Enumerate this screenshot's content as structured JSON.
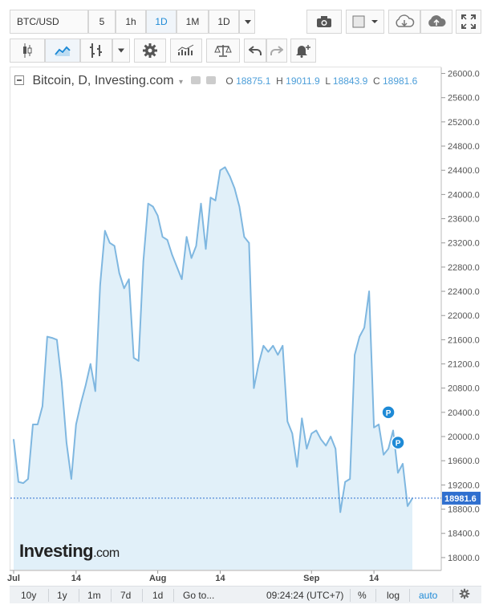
{
  "toolbar": {
    "symbol": "BTC/USD",
    "intervals": [
      "5",
      "1h",
      "1D",
      "1M"
    ],
    "active_interval": "1D",
    "interval_dropdown": "1D"
  },
  "legend": {
    "title": "Bitcoin, D, Investing.com",
    "o_label": "O",
    "o_value": "18875.1",
    "h_label": "H",
    "h_value": "19011.9",
    "l_label": "L",
    "l_value": "18843.9",
    "c_label": "C",
    "c_value": "18981.6"
  },
  "watermark": "Investing",
  "watermark_suffix": ".com",
  "bottom_bar": {
    "ranges": [
      "10y",
      "1y",
      "1m",
      "7d",
      "1d"
    ],
    "goto": "Go to...",
    "time": "09:24:24 (UTC+7)",
    "percent": "%",
    "log": "log",
    "auto": "auto"
  },
  "colors": {
    "line": "#7fb7e0",
    "area": "#e1f0f9",
    "price_label_bg": "#2f6fcf",
    "marker": "#1e8ad6"
  },
  "chart_data": {
    "type": "area",
    "title": "Bitcoin, D, Investing.com",
    "xlabel": "",
    "ylabel": "",
    "ylim": [
      17800,
      26100
    ],
    "y_ticks": [
      "18000.0",
      "18400.0",
      "18800.0",
      "19200.0",
      "19600.0",
      "20000.0",
      "20400.0",
      "20800.0",
      "21200.0",
      "21600.0",
      "22000.0",
      "22400.0",
      "22800.0",
      "23200.0",
      "23600.0",
      "24000.0",
      "24400.0",
      "24800.0",
      "25200.0",
      "25600.0",
      "26000.0"
    ],
    "x_ticks": [
      {
        "label": "Jul",
        "i": 0
      },
      {
        "label": "14",
        "i": 13
      },
      {
        "label": "Aug",
        "i": 30
      },
      {
        "label": "14",
        "i": 43
      },
      {
        "label": "Sep",
        "i": 62
      },
      {
        "label": "14",
        "i": 75
      }
    ],
    "last_price": "18981.6",
    "last_value": 18981.6,
    "markers": [
      {
        "i": 78,
        "value": 20400,
        "label": "P"
      },
      {
        "i": 80,
        "value": 19900,
        "label": "P"
      }
    ],
    "values": [
      19950,
      19250,
      19230,
      19300,
      20200,
      20200,
      20500,
      21650,
      21630,
      21600,
      20900,
      19900,
      19300,
      20200,
      20550,
      20850,
      21200,
      20750,
      22500,
      23400,
      23200,
      23150,
      22700,
      22450,
      22600,
      21300,
      21250,
      22900,
      23850,
      23800,
      23650,
      23300,
      23250,
      23000,
      22800,
      22600,
      23300,
      22950,
      23150,
      23850,
      23100,
      23950,
      23900,
      24400,
      24450,
      24300,
      24100,
      23800,
      23300,
      23200,
      20800,
      21200,
      21500,
      21400,
      21500,
      21350,
      21500,
      20250,
      20050,
      19500,
      20300,
      19800,
      20050,
      20100,
      19950,
      19850,
      20000,
      19800,
      18750,
      19250,
      19300,
      21350,
      21650,
      21800,
      22400,
      20150,
      20200,
      19700,
      19800,
      20100,
      19400,
      19550,
      18850,
      18980
    ]
  }
}
